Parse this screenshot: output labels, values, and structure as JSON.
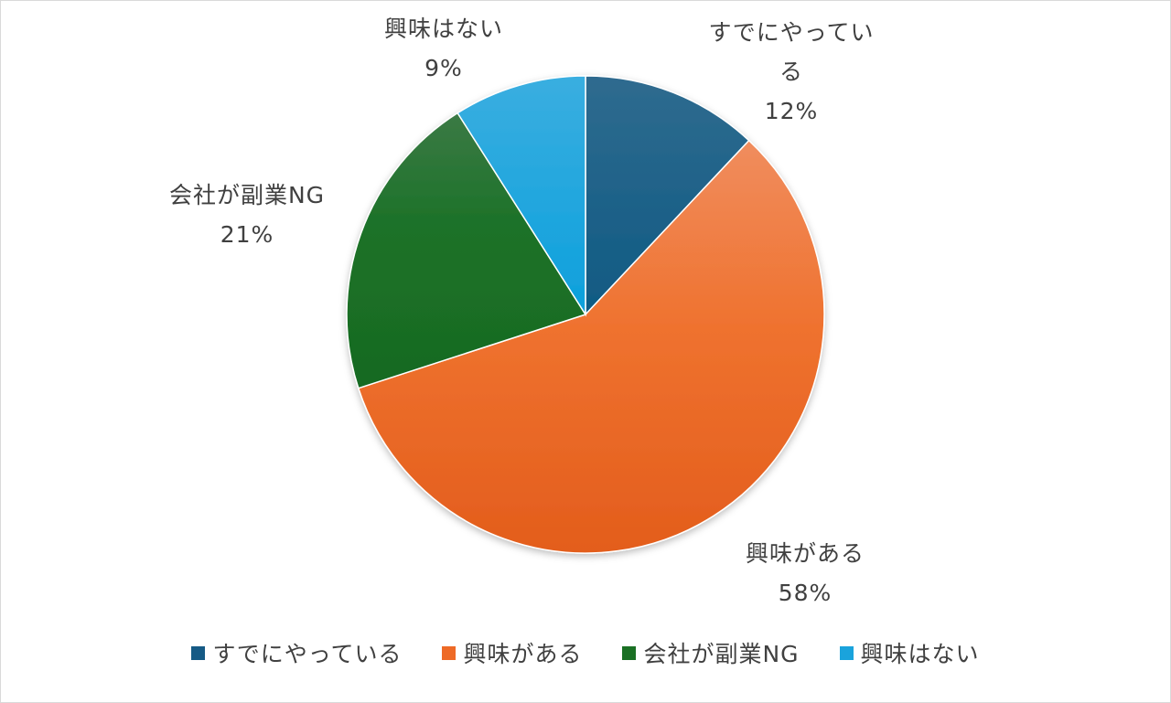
{
  "chart_data": {
    "type": "pie",
    "categories": [
      "すでにやっている",
      "興味がある",
      "会社が副業NG",
      "興味はない"
    ],
    "values": [
      12,
      58,
      21,
      9
    ],
    "unit": "%",
    "colors": [
      "#155a85",
      "#ee6a26",
      "#1a7024",
      "#1aa3dc"
    ],
    "data_labels": [
      {
        "name_lines": [
          "すでにやってい",
          "る"
        ],
        "percent": "12%"
      },
      {
        "name_lines": [
          "興味がある"
        ],
        "percent": "58%"
      },
      {
        "name_lines": [
          "会社が副業NG"
        ],
        "percent": "21%"
      },
      {
        "name_lines": [
          "興味はない"
        ],
        "percent": "9%"
      }
    ],
    "legend": {
      "position": "bottom",
      "items": [
        "すでにやっている",
        "興味がある",
        "会社が副業NG",
        "興味はない"
      ]
    },
    "start_angle": "12 o'clock",
    "direction": "clockwise"
  }
}
